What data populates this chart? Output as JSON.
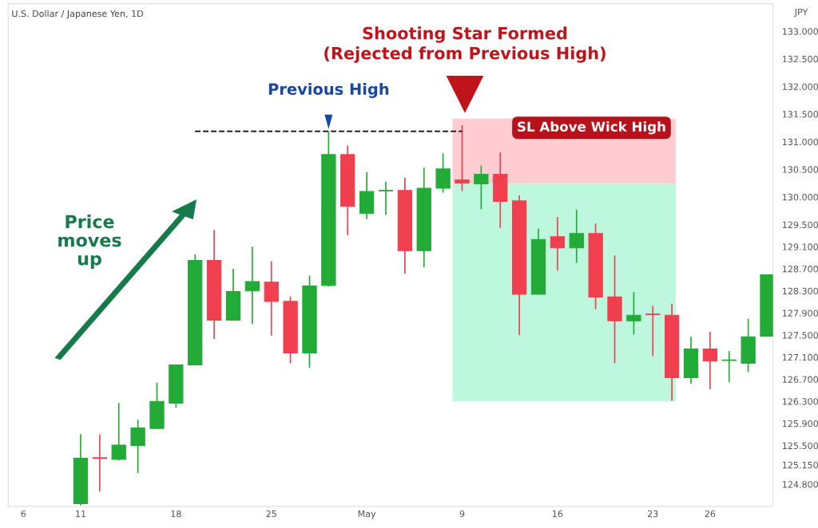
{
  "chart_data": {
    "type": "candlestick",
    "title": "U.S. Dollar / Japanese Yen, 1D",
    "ylabel": "JPY",
    "categories": [
      "6",
      null,
      null,
      "11",
      null,
      null,
      null,
      null,
      "18",
      null,
      null,
      null,
      null,
      "25",
      null,
      null,
      null,
      null,
      "May",
      null,
      null,
      null,
      null,
      "9",
      null,
      null,
      null,
      null,
      "16",
      null,
      null,
      null,
      null,
      "23",
      null,
      null,
      "26",
      null,
      null,
      null
    ],
    "ohlc": [
      null,
      null,
      null,
      [
        124.45,
        125.71,
        124.42,
        125.27
      ],
      [
        125.28,
        125.7,
        124.67,
        125.27
      ],
      [
        125.25,
        126.27,
        125.23,
        125.51
      ],
      [
        125.5,
        125.97,
        125.0,
        125.82
      ],
      [
        125.81,
        126.64,
        125.8,
        126.3
      ],
      [
        126.27,
        126.96,
        126.19,
        126.96
      ],
      [
        126.96,
        128.96,
        126.95,
        128.85
      ],
      [
        128.85,
        129.4,
        127.43,
        127.77
      ],
      [
        127.77,
        128.7,
        127.77,
        128.29
      ],
      [
        128.3,
        129.1,
        127.7,
        128.47
      ],
      [
        128.46,
        128.84,
        127.49,
        128.11
      ],
      [
        128.11,
        128.2,
        126.99,
        127.18
      ],
      [
        127.18,
        128.58,
        126.91,
        128.39
      ],
      [
        128.4,
        131.19,
        128.38,
        130.77
      ],
      [
        130.77,
        130.93,
        129.31,
        129.83
      ],
      [
        129.7,
        130.45,
        129.6,
        130.1
      ],
      [
        130.11,
        130.28,
        129.68,
        130.12
      ],
      [
        130.12,
        130.35,
        128.61,
        129.03
      ],
      [
        129.03,
        130.53,
        128.73,
        130.16
      ],
      [
        130.16,
        130.79,
        130.08,
        130.51
      ],
      [
        130.31,
        131.3,
        130.11,
        130.25
      ],
      [
        130.24,
        130.57,
        129.78,
        130.41
      ],
      [
        130.41,
        130.81,
        129.44,
        129.92
      ],
      [
        129.93,
        130.03,
        127.5,
        128.24
      ],
      [
        128.24,
        129.43,
        128.24,
        129.23
      ],
      [
        129.28,
        129.64,
        128.67,
        129.08
      ],
      [
        129.08,
        129.77,
        128.81,
        129.34
      ],
      [
        129.34,
        129.52,
        127.97,
        128.19
      ],
      [
        128.19,
        128.94,
        126.99,
        127.76
      ],
      [
        127.76,
        128.28,
        127.51,
        127.86
      ],
      [
        127.88,
        128.03,
        127.12,
        127.87
      ],
      [
        127.86,
        128.07,
        126.31,
        126.73
      ],
      [
        126.73,
        127.47,
        126.62,
        127.25
      ],
      [
        127.25,
        127.56,
        126.52,
        127.03
      ],
      [
        127.04,
        127.21,
        126.65,
        127.05
      ],
      [
        126.99,
        127.8,
        126.83,
        127.47
      ],
      [
        127.48,
        128.59,
        127.48,
        128.59
      ]
    ],
    "colors": [
      null,
      null,
      null,
      "#22ab37",
      "#f0404f",
      "#22ab37",
      "#22ab37",
      "#22ab37",
      "#22ab37",
      "#22ab37",
      "#f0404f",
      "#22ab37",
      "#22ab37",
      "#f0404f",
      "#f0404f",
      "#22ab37",
      "#22ab37",
      "#f0404f",
      "#22ab37",
      "#22ab37",
      "#f0404f",
      "#22ab37",
      "#22ab37",
      "#f0404f",
      "#22ab37",
      "#f0404f",
      "#f0404f",
      "#22ab37",
      "#f0404f",
      "#22ab37",
      "#f0404f",
      "#f0404f",
      "#22ab37",
      "#f0404f",
      "#f0404f",
      "#22ab37",
      "#f0404f",
      "#22ab37",
      "#22ab37",
      "#22ab37"
    ],
    "series": [
      {
        "type": "line",
        "color": "#000000",
        "line_style": "dashed",
        "marker": "none",
        "values": [
          null,
          null,
          null,
          null,
          null,
          null,
          null,
          null,
          null,
          131.19,
          131.19,
          131.19,
          131.19,
          131.19,
          131.19,
          131.19,
          131.19,
          131.19,
          131.19,
          131.19,
          131.19,
          131.19,
          131.19,
          131.19,
          null,
          null,
          null,
          null,
          null,
          null,
          null,
          null,
          null,
          null,
          null,
          null,
          null,
          null,
          null,
          null
        ]
      }
    ],
    "annotations": [
      "Shooting Star Formed\n(Rejected from Previous High)",
      {
        "text": "Previous High",
        "y": 131.19
      },
      "Price\nmoves\nup"
    ],
    "bands": [
      {
        "axis": "y",
        "from": 130.24,
        "to": 131.42,
        "color": "#ffcdd1",
        "label": "SL Above Wick High"
      },
      {
        "axis": "y",
        "from": 126.3,
        "to": 130.24,
        "color": "#bdf8de"
      }
    ],
    "ylim": [
      124.4,
      133.5
    ],
    "yticks": [
      {
        "value": 124.8,
        "label": "124.800"
      },
      {
        "value": 125.15,
        "label": "125.150"
      },
      {
        "value": 125.5,
        "label": "125.500"
      },
      {
        "value": 125.9,
        "label": "125.900"
      },
      {
        "value": 126.3,
        "label": "126.300"
      },
      {
        "value": 126.7,
        "label": "126.700"
      },
      {
        "value": 127.1,
        "label": "127.100"
      },
      {
        "value": 127.5,
        "label": "127.500"
      },
      {
        "value": 127.9,
        "label": "127.900"
      },
      {
        "value": 128.3,
        "label": "128.300"
      },
      {
        "value": 128.7,
        "label": "128.700"
      },
      {
        "value": 129.1,
        "label": "129.100"
      },
      {
        "value": 129.5,
        "label": "129.500"
      },
      {
        "value": 130.0,
        "label": "130.000"
      },
      {
        "value": 130.5,
        "label": "130.500"
      },
      {
        "value": 131.0,
        "label": "131.000"
      },
      {
        "value": 131.5,
        "label": "131.500"
      },
      {
        "value": 132.0,
        "label": "132.000"
      },
      {
        "value": 132.5,
        "label": "132.500"
      },
      {
        "value": 133.0,
        "label": "133.000"
      }
    ],
    "grid": false,
    "legend": false
  }
}
